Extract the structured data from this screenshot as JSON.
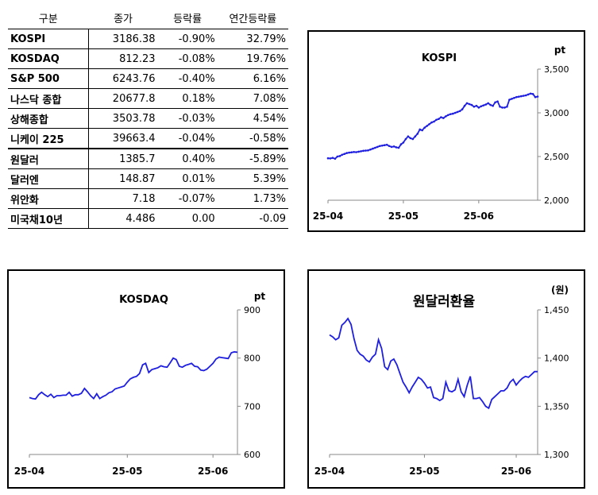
{
  "table": {
    "headers": [
      "구분",
      "종가",
      "등락률",
      "연간등락률"
    ],
    "rows": [
      {
        "name": "KOSPI",
        "close": "3186.38",
        "change": "-0.90%",
        "ytd": "32.79%"
      },
      {
        "name": "KOSDAQ",
        "close": "812.23",
        "change": "-0.08%",
        "ytd": "19.76%"
      },
      {
        "name": "S&P 500",
        "close": "6243.76",
        "change": "-0.40%",
        "ytd": "6.16%"
      },
      {
        "name": "나스닥 종합",
        "close": "20677.8",
        "change": "0.18%",
        "ytd": "7.08%"
      },
      {
        "name": "상해종합",
        "close": "3503.78",
        "change": "-0.03%",
        "ytd": "4.54%"
      },
      {
        "name": "니케이 225",
        "close": "39663.4",
        "change": "-0.04%",
        "ytd": "-0.58%"
      },
      {
        "name": "원달러",
        "close": "1385.7",
        "change": "0.40%",
        "ytd": "-5.89%"
      },
      {
        "name": "달러엔",
        "close": "148.87",
        "change": "0.01%",
        "ytd": "5.39%"
      },
      {
        "name": "위안화",
        "close": "7.18",
        "change": "-0.07%",
        "ytd": "1.73%"
      },
      {
        "name": "미국채10년",
        "close": "4.486",
        "change": "0.00",
        "ytd": "-0.09"
      }
    ]
  },
  "colors": {
    "line": "#1f1fe0",
    "axis": "#888888"
  },
  "chart_data": [
    {
      "type": "line",
      "title": "KOSPI",
      "unit": "pt",
      "x_ticks": [
        "25-04",
        "25-05",
        "25-06"
      ],
      "y_ticks": [
        "3,500",
        "3,000",
        "2,500",
        "2,000"
      ],
      "ylim": [
        2000,
        3500
      ],
      "x": [
        0,
        1,
        2,
        3,
        4,
        5,
        6,
        7,
        8,
        9,
        10,
        11,
        12,
        13,
        14,
        15,
        16,
        17,
        18,
        19,
        20,
        21,
        22,
        23,
        24,
        25,
        26,
        27,
        28,
        29,
        30,
        31,
        32,
        33,
        34,
        35,
        36,
        37,
        38,
        39,
        40,
        41,
        42,
        43,
        44,
        45,
        46,
        47,
        48,
        49,
        50,
        51,
        52,
        53,
        54,
        55,
        56,
        57,
        58,
        59,
        60,
        61,
        62,
        63,
        64,
        65,
        66,
        67,
        68,
        69,
        70,
        71,
        72,
        73,
        74,
        75,
        76,
        77,
        78,
        79,
        80,
        81,
        82,
        83,
        84,
        85,
        86,
        87,
        88,
        89
      ],
      "values": [
        2480,
        2478,
        2485,
        2475,
        2500,
        2505,
        2520,
        2530,
        2540,
        2545,
        2548,
        2552,
        2550,
        2555,
        2560,
        2565,
        2568,
        2570,
        2580,
        2590,
        2600,
        2610,
        2620,
        2625,
        2630,
        2635,
        2620,
        2610,
        2615,
        2605,
        2600,
        2640,
        2660,
        2700,
        2730,
        2710,
        2700,
        2730,
        2760,
        2810,
        2800,
        2830,
        2850,
        2870,
        2890,
        2900,
        2920,
        2930,
        2950,
        2940,
        2960,
        2975,
        2985,
        2990,
        3000,
        3010,
        3020,
        3040,
        3080,
        3110,
        3100,
        3090,
        3070,
        3080,
        3060,
        3075,
        3085,
        3095,
        3110,
        3090,
        3080,
        3120,
        3130,
        3070,
        3060,
        3060,
        3070,
        3150,
        3160,
        3170,
        3180,
        3185,
        3190,
        3195,
        3200,
        3210,
        3220,
        3215,
        3180,
        3186
      ]
    },
    {
      "type": "line",
      "title": "KOSDAQ",
      "unit": "pt",
      "x_ticks": [
        "25-04",
        "25-05",
        "25-06"
      ],
      "y_ticks": [
        "900",
        "800",
        "700",
        "600"
      ],
      "ylim": [
        600,
        900
      ],
      "x": [
        0,
        1,
        2,
        3,
        4,
        5,
        6,
        7,
        8,
        9,
        10,
        11,
        12,
        13,
        14,
        15,
        16,
        17,
        18,
        19,
        20,
        21,
        22,
        23,
        24,
        25,
        26,
        27,
        28,
        29,
        30,
        31,
        32,
        33,
        34,
        35,
        36,
        37,
        38,
        39,
        40,
        41,
        42,
        43,
        44,
        45,
        46,
        47,
        48,
        49,
        50,
        51,
        52,
        53,
        54,
        55,
        56,
        57,
        58,
        59,
        60,
        61,
        62,
        63,
        64,
        65,
        66,
        67,
        68
      ],
      "values": [
        718,
        716,
        715,
        724,
        729,
        724,
        720,
        725,
        718,
        722,
        722,
        723,
        723,
        729,
        721,
        724,
        724,
        727,
        737,
        730,
        722,
        716,
        726,
        716,
        720,
        723,
        728,
        730,
        736,
        738,
        740,
        742,
        750,
        757,
        760,
        762,
        768,
        786,
        789,
        770,
        776,
        778,
        780,
        784,
        782,
        781,
        790,
        800,
        797,
        783,
        781,
        785,
        787,
        789,
        783,
        782,
        775,
        774,
        777,
        783,
        789,
        798,
        802,
        801,
        800,
        799,
        811,
        813,
        812
      ]
    },
    {
      "type": "line",
      "title": "원달러환율",
      "unit": "(원)",
      "x_ticks": [
        "25-04",
        "25-05",
        "25-06"
      ],
      "y_ticks": [
        "1,450",
        "1,400",
        "1,350",
        "1,300"
      ],
      "ylim": [
        1300,
        1450
      ],
      "x": [
        0,
        1,
        2,
        3,
        4,
        5,
        6,
        7,
        8,
        9,
        10,
        11,
        12,
        13,
        14,
        15,
        16,
        17,
        18,
        19,
        20,
        21,
        22,
        23,
        24,
        25,
        26,
        27,
        28,
        29,
        30,
        31,
        32,
        33,
        34,
        35,
        36,
        37,
        38,
        39,
        40,
        41,
        42,
        43,
        44,
        45,
        46,
        47,
        48,
        49,
        50,
        51,
        52,
        53,
        54,
        55,
        56,
        57,
        58,
        59,
        60,
        61,
        62,
        63,
        64,
        65,
        66,
        67,
        68
      ],
      "values": [
        1424,
        1422,
        1419,
        1421,
        1434,
        1437,
        1441,
        1435,
        1420,
        1408,
        1404,
        1402,
        1398,
        1396,
        1401,
        1404,
        1419,
        1410,
        1391,
        1388,
        1397,
        1399,
        1393,
        1384,
        1375,
        1370,
        1364,
        1370,
        1375,
        1380,
        1378,
        1374,
        1369,
        1370,
        1359,
        1358,
        1356,
        1358,
        1375,
        1366,
        1365,
        1367,
        1378,
        1365,
        1360,
        1372,
        1381,
        1358,
        1358,
        1359,
        1355,
        1350,
        1348,
        1357,
        1360,
        1363,
        1366,
        1366,
        1369,
        1375,
        1378,
        1372,
        1376,
        1379,
        1381,
        1380,
        1383,
        1386,
        1386
      ]
    }
  ]
}
